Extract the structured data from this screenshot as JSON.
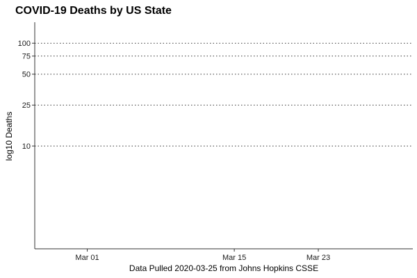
{
  "chart_data": {
    "type": "line",
    "title": "COVID-19 Deaths by US State",
    "xlabel": "Data Pulled 2020-03-25 from Johns Hopkins CSSE",
    "ylabel": "log10 Deaths",
    "y_scale": "log10",
    "ylim": [
      1,
      160
    ],
    "xlim": [
      "2020-02-25",
      "2020-04-01"
    ],
    "y_ticks": [
      {
        "value": 10,
        "label": "10"
      },
      {
        "value": 25,
        "label": "25"
      },
      {
        "value": 50,
        "label": "50"
      },
      {
        "value": 75,
        "label": "75"
      },
      {
        "value": 100,
        "label": "100"
      }
    ],
    "x_ticks": [
      {
        "date": "2020-03-01",
        "label": "Mar 01"
      },
      {
        "date": "2020-03-15",
        "label": "Mar 15"
      },
      {
        "date": "2020-03-23",
        "label": "Mar 23"
      }
    ],
    "gridlines": "horizontal-dotted",
    "series": [],
    "colors": {
      "axis": "#333333",
      "grid": "#333333",
      "text": "#000000"
    }
  }
}
